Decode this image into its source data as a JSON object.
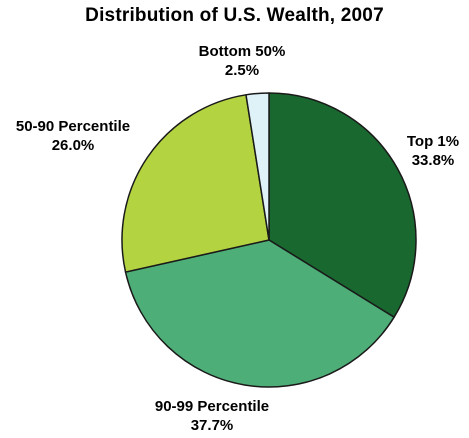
{
  "chart_data": {
    "type": "pie",
    "title": "Distribution of U.S. Wealth, 2007",
    "slices": [
      {
        "label": "Top 1%",
        "value": 33.8,
        "value_label": "33.8%",
        "color": "#19682f"
      },
      {
        "label": "90-99 Percentile",
        "value": 37.7,
        "value_label": "37.7%",
        "color": "#4dae77"
      },
      {
        "label": "50-90 Percentile",
        "value": 26.0,
        "value_label": "26.0%",
        "color": "#b3d341"
      },
      {
        "label": "Bottom 50%",
        "value": 2.5,
        "value_label": "2.5%",
        "color": "#def2f7"
      }
    ],
    "legend": "none",
    "edge_color": "#1a1a1a"
  }
}
